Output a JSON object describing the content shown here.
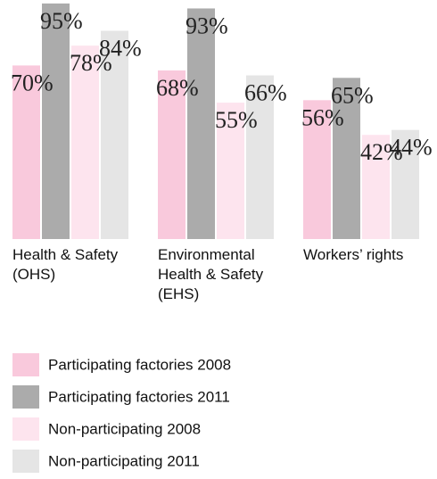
{
  "chart_data": {
    "type": "bar",
    "categories": [
      "Health & Safety (OHS)",
      "Environmental Health & Safety (EHS)",
      "Workers’ rights"
    ],
    "series": [
      {
        "name": "Participating factories 2008",
        "color": "#f9c9dc",
        "values": [
          70,
          68,
          56
        ],
        "value_labels": [
          "70%",
          "68%",
          "56%"
        ]
      },
      {
        "name": "Participating factories 2011",
        "color": "#ababab",
        "values": [
          95,
          93,
          65
        ],
        "value_labels": [
          "95%",
          "93%",
          "65%"
        ]
      },
      {
        "name": "Non-participating 2008",
        "color": "#fde4ee",
        "values": [
          78,
          55,
          42
        ],
        "value_labels": [
          "78%",
          "55%",
          "42%"
        ]
      },
      {
        "name": "Non-participating 2011",
        "color": "#e5e5e5",
        "values": [
          84,
          66,
          44
        ],
        "value_labels": [
          "84%",
          "66%",
          "44%"
        ]
      }
    ]
  }
}
